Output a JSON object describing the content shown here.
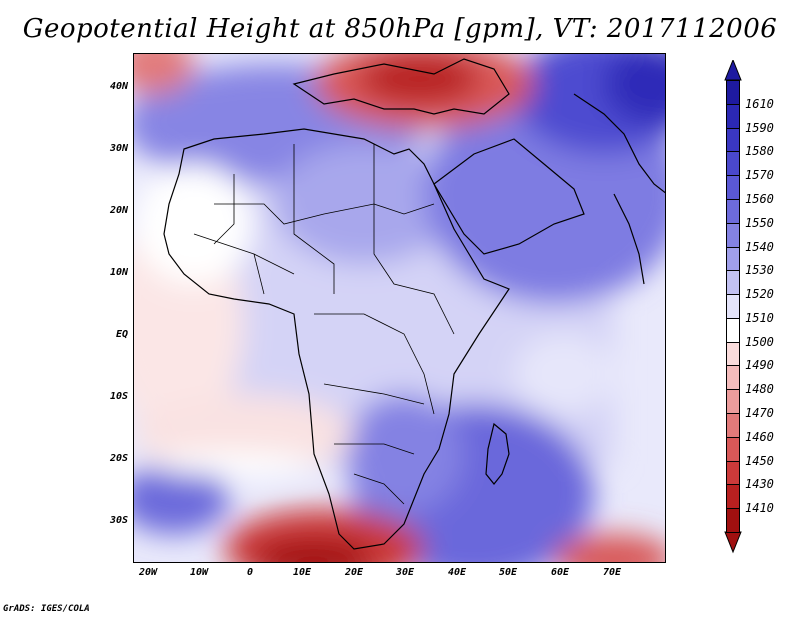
{
  "title": "Geopotential Height at 850hPa [gpm], VT: 2017112006",
  "footer": "GrADS: IGES/COLA",
  "map": {
    "lat_labels": [
      "40N",
      "30N",
      "20N",
      "10N",
      "EQ",
      "10S",
      "20S",
      "30S"
    ],
    "lon_labels": [
      "20W",
      "10W",
      "0",
      "10E",
      "20E",
      "30E",
      "40E",
      "50E",
      "60E",
      "70E"
    ]
  },
  "colorbar": {
    "labels": [
      "1610",
      "1590",
      "1580",
      "1570",
      "1560",
      "1550",
      "1540",
      "1530",
      "1520",
      "1510",
      "1500",
      "1490",
      "1480",
      "1470",
      "1460",
      "1450",
      "1430",
      "1410"
    ],
    "colors": [
      "#1e1aa0",
      "#2b28b4",
      "#3a37c2",
      "#4a48cc",
      "#5a58d5",
      "#6d6bdc",
      "#8482e3",
      "#a09fea",
      "#c2c1f2",
      "#e4e4fa",
      "#ffffff",
      "#fadcdc",
      "#f4bcbc",
      "#ec9c9c",
      "#e27a7a",
      "#d85858",
      "#cc3a3a",
      "#b82020",
      "#a01010"
    ]
  }
}
